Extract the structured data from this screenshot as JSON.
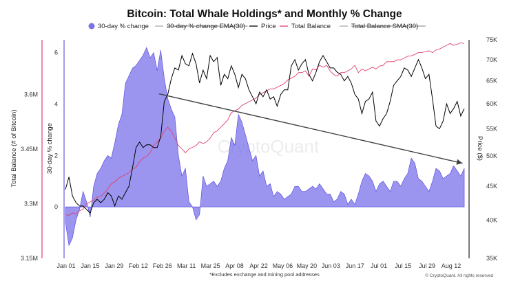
{
  "chart_data": {
    "type": "area",
    "title": "Bitcoin: Total Whale Holdings* and Monthly % Change",
    "footnote": "*Excludes exchange and mining pool addresses",
    "credit": "© CryptoQuant. All rights reserved",
    "watermark": "CryptoQuant",
    "legend": {
      "placement": "top",
      "items": [
        {
          "label": "30-day % change",
          "style": "dot",
          "color": "#7b72ea"
        },
        {
          "label": "30-day % change  EMA(30)",
          "style": "line-strike",
          "color": "#aaaaaa"
        },
        {
          "label": "Price",
          "style": "line",
          "color": "#000000"
        },
        {
          "label": "Total Balance",
          "style": "line",
          "color": "#e0406a"
        },
        {
          "label": "Total Balance  SMA(30)",
          "style": "line-strike",
          "color": "#aaaaaa"
        }
      ]
    },
    "x_ticks": [
      "Jan 01",
      "Jan 15",
      "Jan 29",
      "Feb 12",
      "Feb 26",
      "Mar 11",
      "Mar 25",
      "Apr 08",
      "Apr 22",
      "May 06",
      "May 20",
      "Jun 03",
      "Jun 17",
      "Jul 01",
      "Jul 15",
      "Jul 29",
      "Aug 12"
    ],
    "axes": {
      "balance": {
        "label": "Total Balance (# of Bitcoin)",
        "ticks": [
          "3.15M",
          "3.3M",
          "3.45M",
          "3.6M"
        ],
        "tick_values": [
          3150000,
          3300000,
          3450000,
          3600000
        ],
        "range": [
          3150000,
          3750000
        ],
        "color": "#e0406a"
      },
      "pct": {
        "label": "30-day % change",
        "ticks": [
          "0",
          "2",
          "4",
          "6"
        ],
        "tick_values": [
          0,
          2,
          4,
          6
        ],
        "range": [
          -2,
          6.5
        ],
        "color": "#7b72ea"
      },
      "price": {
        "label": "Price ($)",
        "ticks": [
          "35K",
          "40K",
          "45K",
          "50K",
          "55K",
          "60K",
          "65K",
          "70K",
          "75K"
        ],
        "tick_values": [
          35000,
          40000,
          45000,
          50000,
          55000,
          60000,
          65000,
          70000,
          75000
        ],
        "scale": "log",
        "range": [
          35000,
          75000
        ]
      }
    },
    "x_range_days": [
      0,
      226
    ],
    "series": [
      {
        "name": "30-day % change",
        "axis": "pct",
        "color": "#7b72ea",
        "x": [
          0,
          2,
          4,
          6,
          8,
          10,
          12,
          14,
          16,
          18,
          20,
          22,
          24,
          26,
          28,
          30,
          32,
          34,
          36,
          38,
          40,
          42,
          44,
          46,
          48,
          50,
          52,
          54,
          56,
          58,
          60,
          62,
          64,
          66,
          68,
          70,
          72,
          74,
          76,
          78,
          80,
          82,
          84,
          86,
          88,
          90,
          92,
          94,
          96,
          98,
          100,
          102,
          104,
          106,
          108,
          110,
          112,
          114,
          116,
          118,
          120,
          122,
          124,
          126,
          128,
          130,
          132,
          134,
          136,
          138,
          140,
          142,
          144,
          146,
          148,
          150,
          152,
          154,
          156,
          158,
          160,
          162,
          164,
          166,
          168,
          170,
          172,
          174,
          176,
          178,
          180,
          182,
          184,
          186,
          188,
          190,
          192,
          194,
          196,
          198,
          200,
          202,
          204,
          206,
          208,
          210,
          212,
          214,
          216,
          218,
          220,
          222,
          224,
          226
        ],
        "values": [
          -0.6,
          -1.5,
          -1.2,
          -0.5,
          -0.1,
          0.6,
          0.2,
          -0.4,
          0.8,
          1.3,
          1.5,
          1.8,
          2.0,
          1.9,
          2.5,
          3.2,
          3.6,
          4.8,
          5.1,
          5.4,
          5.5,
          5.7,
          5.9,
          6.2,
          5.8,
          6.0,
          5.3,
          6.1,
          5.0,
          4.2,
          3.8,
          3.5,
          2.0,
          1.2,
          1.5,
          0.2,
          0.0,
          -0.5,
          -0.3,
          1.2,
          0.8,
          0.9,
          1.0,
          0.8,
          1.0,
          1.5,
          1.8,
          2.7,
          2.4,
          3.6,
          3.3,
          2.8,
          2.3,
          1.8,
          2.0,
          1.2,
          1.4,
          0.8,
          0.9,
          0.4,
          0.6,
          0.5,
          0.3,
          0.4,
          0.5,
          0.8,
          0.8,
          0.6,
          0.6,
          0.7,
          0.8,
          0.7,
          0.9,
          0.7,
          0.5,
          0.5,
          0.2,
          0.3,
          0.6,
          0.5,
          0.1,
          0.3,
          0.1,
          0.5,
          1.0,
          1.3,
          1.2,
          1.0,
          0.6,
          0.9,
          1.0,
          0.8,
          0.6,
          1.0,
          1.0,
          0.8,
          1.1,
          1.3,
          1.9,
          1.7,
          1.1,
          1.0,
          0.8,
          0.6,
          1.0,
          1.5,
          1.4,
          1.1,
          1.2,
          1.3,
          1.6,
          1.4,
          1.2,
          1.5
        ]
      },
      {
        "name": "Price",
        "axis": "price",
        "color": "#000000",
        "x": [
          0,
          2,
          4,
          6,
          8,
          10,
          12,
          14,
          16,
          18,
          20,
          22,
          24,
          26,
          28,
          30,
          32,
          34,
          36,
          38,
          40,
          42,
          44,
          46,
          48,
          50,
          52,
          54,
          56,
          58,
          60,
          62,
          64,
          66,
          68,
          70,
          72,
          74,
          76,
          78,
          80,
          82,
          84,
          86,
          88,
          90,
          92,
          94,
          96,
          98,
          100,
          102,
          104,
          106,
          108,
          110,
          112,
          114,
          116,
          118,
          120,
          122,
          124,
          126,
          128,
          130,
          132,
          134,
          136,
          138,
          140,
          142,
          144,
          146,
          148,
          150,
          152,
          154,
          156,
          158,
          160,
          162,
          164,
          166,
          168,
          170,
          172,
          174,
          176,
          178,
          180,
          182,
          184,
          186,
          188,
          190,
          192,
          194,
          196,
          198,
          200,
          202,
          204,
          206,
          208,
          210,
          212,
          214,
          216,
          218,
          220,
          222,
          224,
          226
        ],
        "values": [
          44500,
          46500,
          43500,
          42500,
          42000,
          42000,
          41500,
          41000,
          42500,
          43000,
          42500,
          43000,
          44000,
          43500,
          42000,
          43500,
          43000,
          44000,
          45000,
          48000,
          51500,
          52500,
          51500,
          52000,
          52000,
          51500,
          51500,
          53500,
          60500,
          62000,
          65500,
          68000,
          67500,
          71000,
          69000,
          68500,
          71500,
          69000,
          64500,
          67500,
          65500,
          71000,
          69500,
          70500,
          64000,
          66500,
          65500,
          68500,
          66500,
          63500,
          66500,
          65500,
          63000,
          61500,
          60000,
          62500,
          61500,
          63000,
          61000,
          61500,
          59500,
          62000,
          63000,
          63000,
          68500,
          70000,
          67500,
          69000,
          70000,
          66500,
          65000,
          67000,
          69500,
          71000,
          69500,
          68000,
          68000,
          67000,
          66500,
          65000,
          66000,
          64500,
          62000,
          61000,
          58000,
          60500,
          61000,
          62500,
          56500,
          55500,
          57000,
          58000,
          60500,
          64000,
          65000,
          66000,
          68000,
          67500,
          66000,
          68000,
          70000,
          68000,
          65500,
          66500,
          61000,
          55500,
          55000,
          56500,
          60000,
          58000,
          59000,
          60500,
          57500,
          59000
        ]
      },
      {
        "name": "Total Balance",
        "axis": "balance",
        "color": "#e0406a",
        "x": [
          0,
          2,
          4,
          6,
          8,
          10,
          12,
          14,
          16,
          18,
          20,
          22,
          24,
          26,
          28,
          30,
          32,
          34,
          36,
          38,
          40,
          42,
          44,
          46,
          48,
          50,
          52,
          54,
          56,
          58,
          60,
          62,
          64,
          66,
          68,
          70,
          72,
          74,
          76,
          78,
          80,
          82,
          84,
          86,
          88,
          90,
          92,
          94,
          96,
          98,
          100,
          102,
          104,
          106,
          108,
          110,
          112,
          114,
          116,
          118,
          120,
          122,
          124,
          126,
          128,
          130,
          132,
          134,
          136,
          138,
          140,
          142,
          144,
          146,
          148,
          150,
          152,
          154,
          156,
          158,
          160,
          162,
          164,
          166,
          168,
          170,
          172,
          174,
          176,
          178,
          180,
          182,
          184,
          186,
          188,
          190,
          192,
          194,
          196,
          198,
          200,
          202,
          204,
          206,
          208,
          210,
          212,
          214,
          216,
          218,
          220,
          222,
          224,
          226
        ],
        "values": [
          3270000,
          3268000,
          3275000,
          3272000,
          3280000,
          3285000,
          3300000,
          3305000,
          3310000,
          3318000,
          3320000,
          3330000,
          3340000,
          3355000,
          3360000,
          3370000,
          3375000,
          3380000,
          3385000,
          3395000,
          3400000,
          3415000,
          3425000,
          3430000,
          3440000,
          3460000,
          3470000,
          3480000,
          3500000,
          3510000,
          3500000,
          3480000,
          3460000,
          3450000,
          3440000,
          3450000,
          3455000,
          3460000,
          3470000,
          3465000,
          3470000,
          3480000,
          3495000,
          3500000,
          3510000,
          3520000,
          3530000,
          3550000,
          3555000,
          3560000,
          3570000,
          3575000,
          3580000,
          3585000,
          3590000,
          3600000,
          3605000,
          3610000,
          3615000,
          3615000,
          3620000,
          3625000,
          3630000,
          3640000,
          3645000,
          3650000,
          3660000,
          3660000,
          3665000,
          3650000,
          3670000,
          3668000,
          3680000,
          3675000,
          3680000,
          3665000,
          3655000,
          3650000,
          3660000,
          3660000,
          3665000,
          3670000,
          3680000,
          3660000,
          3670000,
          3665000,
          3670000,
          3675000,
          3670000,
          3678000,
          3680000,
          3690000,
          3690000,
          3690000,
          3695000,
          3695000,
          3700000,
          3705000,
          3706000,
          3710000,
          3715000,
          3715000,
          3718000,
          3720000,
          3715000,
          3722000,
          3725000,
          3730000,
          3735000,
          3740000,
          3735000,
          3738000,
          3742000,
          3740000
        ]
      }
    ],
    "trendline": {
      "axis": "pct",
      "from": [
        53,
        4.4
      ],
      "to": [
        225,
        1.7
      ],
      "color": "#444444"
    }
  }
}
